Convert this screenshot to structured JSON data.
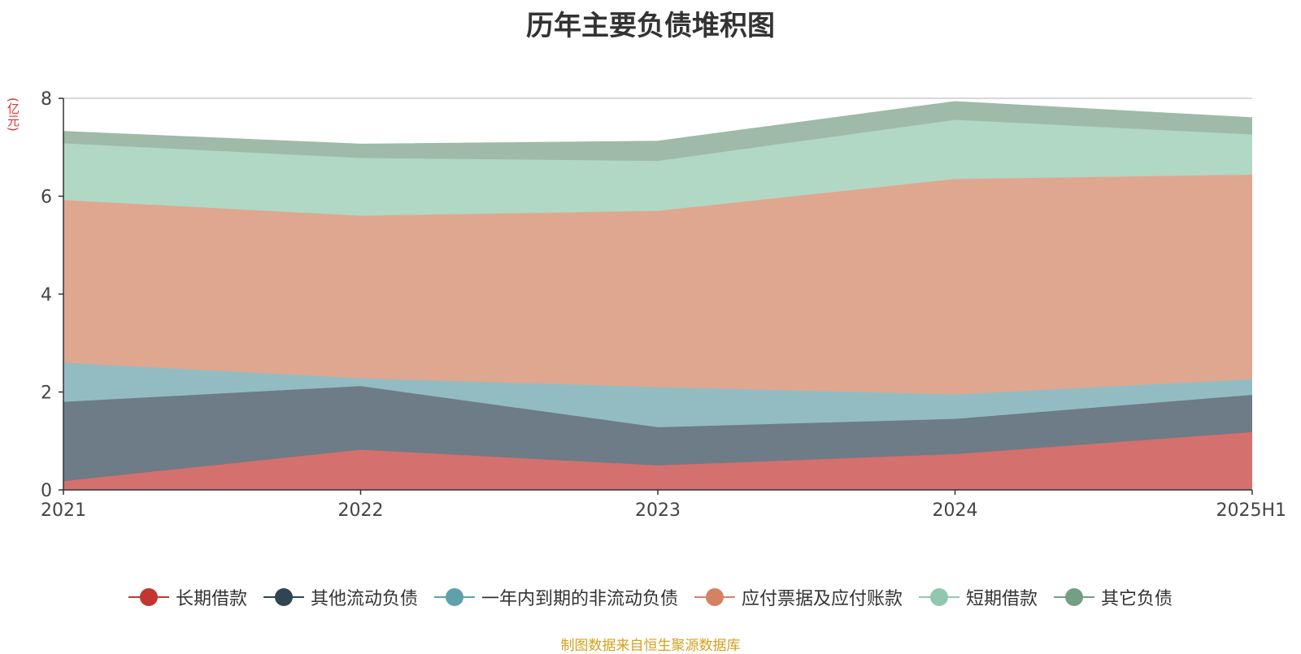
{
  "chart_data": {
    "type": "area",
    "stacked": true,
    "title": "历年主要负债堆积图",
    "unit": "(亿元)",
    "categories": [
      "2021",
      "2022",
      "2023",
      "2024",
      "2025H1"
    ],
    "ylim": [
      0,
      8
    ],
    "yticks": [
      0,
      2,
      4,
      6,
      8
    ],
    "series": [
      {
        "name": "长期借款",
        "values": [
          0.18,
          0.82,
          0.5,
          0.73,
          1.18
        ],
        "color": "#c23531",
        "fill": "#d4706e"
      },
      {
        "name": "其他流动负债",
        "values": [
          1.62,
          1.3,
          0.78,
          0.72,
          0.76
        ],
        "color": "#2f4554",
        "fill": "#6e7c87"
      },
      {
        "name": "一年内到期的非流动负债",
        "values": [
          0.8,
          0.16,
          0.82,
          0.5,
          0.32
        ],
        "color": "#61a0a8",
        "fill": "#93bcc2"
      },
      {
        "name": "应付票据及应付账款",
        "values": [
          3.32,
          3.32,
          3.6,
          4.4,
          4.18
        ],
        "color": "#d48265",
        "fill": "#dfa790"
      },
      {
        "name": "短期借款",
        "values": [
          1.16,
          1.18,
          1.02,
          1.21,
          0.82
        ],
        "color": "#91c7ae",
        "fill": "#b1d7c5"
      },
      {
        "name": "其它负债",
        "values": [
          0.24,
          0.28,
          0.4,
          0.37,
          0.34
        ],
        "color": "#749f83",
        "fill": "#9fbaa8"
      }
    ],
    "legend_position": "bottom"
  },
  "footer": {
    "source": "制图数据来自恒生聚源数据库"
  }
}
